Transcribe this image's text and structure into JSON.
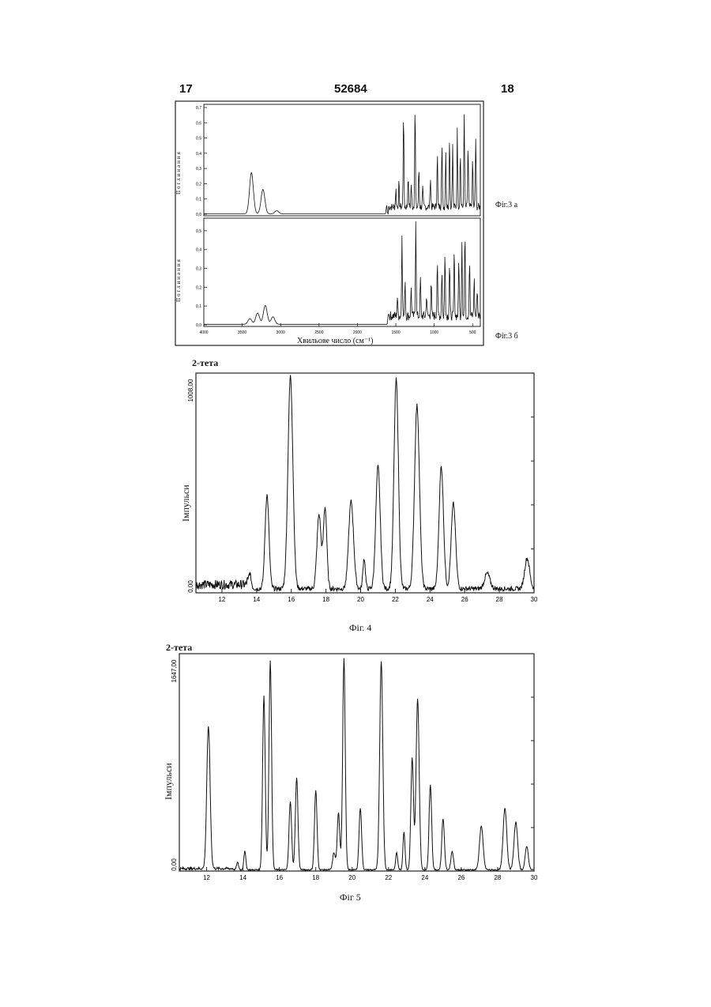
{
  "header": {
    "left_page": "17",
    "center_number": "52684",
    "right_page": "18"
  },
  "fig3": {
    "xlabel": "Хвильове число",
    "xunit": "(см⁻¹)",
    "caption_top": "Фіг.3 а",
    "caption_bottom": "Фіг.3 б",
    "ylabel_top": "Поглинання",
    "ylabel_bottom": "Поглинання",
    "x_ticks": [
      "4000",
      "3500",
      "3000",
      "2500",
      "2000",
      "1500",
      "1000",
      "500"
    ],
    "y_ticks_top": [
      "0,0",
      "0,1",
      "0,2",
      "0,3",
      "0,4",
      "0,5",
      "0,6",
      "0,7"
    ],
    "y_ticks_bottom": [
      "0,0",
      "0,1",
      "0,2",
      "0,3",
      "0,4",
      "0,5"
    ]
  },
  "fig4": {
    "top_label": "2-тета",
    "ylabel": "Імпульси",
    "ymax_label": "1008,00",
    "ymin_label": "0,00",
    "x_ticks": [
      "12",
      "14",
      "16",
      "18",
      "20",
      "22",
      "24",
      "26",
      "28",
      "30"
    ],
    "caption": "Фіг. 4"
  },
  "fig5": {
    "top_label": "2-тета",
    "ylabel": "Імпульси",
    "ymax_label": "1647,00",
    "ymin_label": "0,00",
    "x_ticks": [
      "12",
      "14",
      "16",
      "18",
      "20",
      "22",
      "24",
      "26",
      "28",
      "30"
    ],
    "caption": "Фіг 5"
  },
  "chart_data": [
    {
      "type": "line",
      "name_ref": "fig3a",
      "xlabel": "Хвильове число (см⁻¹)",
      "xlim": [
        4000,
        400
      ],
      "ylim": [
        0,
        0.7
      ],
      "peaks": [
        {
          "x": 3380,
          "y": 0.27
        },
        {
          "x": 3230,
          "y": 0.16
        },
        {
          "x": 3050,
          "y": 0.02
        },
        {
          "x": 1620,
          "y": 0.06
        },
        {
          "x": 1500,
          "y": 0.12
        },
        {
          "x": 1460,
          "y": 0.16
        },
        {
          "x": 1400,
          "y": 0.62
        },
        {
          "x": 1340,
          "y": 0.2
        },
        {
          "x": 1300,
          "y": 0.15
        },
        {
          "x": 1250,
          "y": 0.66
        },
        {
          "x": 1200,
          "y": 0.25
        },
        {
          "x": 1150,
          "y": 0.12
        },
        {
          "x": 1050,
          "y": 0.2
        },
        {
          "x": 960,
          "y": 0.35
        },
        {
          "x": 900,
          "y": 0.42
        },
        {
          "x": 850,
          "y": 0.38
        },
        {
          "x": 800,
          "y": 0.45
        },
        {
          "x": 760,
          "y": 0.4
        },
        {
          "x": 700,
          "y": 0.5
        },
        {
          "x": 660,
          "y": 0.35
        },
        {
          "x": 610,
          "y": 0.6
        },
        {
          "x": 560,
          "y": 0.4
        },
        {
          "x": 500,
          "y": 0.3
        },
        {
          "x": 460,
          "y": 0.45
        }
      ]
    },
    {
      "type": "line",
      "name_ref": "fig3b",
      "xlabel": "Хвильове число (см⁻¹)",
      "xlim": [
        4000,
        400
      ],
      "ylim": [
        0,
        0.55
      ],
      "peaks": [
        {
          "x": 3400,
          "y": 0.03
        },
        {
          "x": 3300,
          "y": 0.06
        },
        {
          "x": 3200,
          "y": 0.1
        },
        {
          "x": 3100,
          "y": 0.04
        },
        {
          "x": 1600,
          "y": 0.05
        },
        {
          "x": 1480,
          "y": 0.1
        },
        {
          "x": 1420,
          "y": 0.45
        },
        {
          "x": 1380,
          "y": 0.2
        },
        {
          "x": 1300,
          "y": 0.15
        },
        {
          "x": 1240,
          "y": 0.55
        },
        {
          "x": 1180,
          "y": 0.2
        },
        {
          "x": 1100,
          "y": 0.12
        },
        {
          "x": 1040,
          "y": 0.18
        },
        {
          "x": 960,
          "y": 0.3
        },
        {
          "x": 900,
          "y": 0.25
        },
        {
          "x": 860,
          "y": 0.34
        },
        {
          "x": 800,
          "y": 0.28
        },
        {
          "x": 740,
          "y": 0.35
        },
        {
          "x": 680,
          "y": 0.3
        },
        {
          "x": 640,
          "y": 0.4
        },
        {
          "x": 600,
          "y": 0.45
        },
        {
          "x": 540,
          "y": 0.3
        },
        {
          "x": 480,
          "y": 0.2
        },
        {
          "x": 440,
          "y": 0.15
        }
      ]
    },
    {
      "type": "line",
      "name_ref": "fig4",
      "xlabel": "",
      "ylabel": "Імпульси",
      "xlim": [
        10.5,
        30
      ],
      "ylim": [
        0,
        1008
      ],
      "baseline": 30,
      "peaks": [
        {
          "x": 13.6,
          "y": 70,
          "w": 0.12
        },
        {
          "x": 14.6,
          "y": 430,
          "w": 0.16
        },
        {
          "x": 15.95,
          "y": 975,
          "w": 0.2
        },
        {
          "x": 17.6,
          "y": 340,
          "w": 0.17
        },
        {
          "x": 17.95,
          "y": 370,
          "w": 0.14
        },
        {
          "x": 19.45,
          "y": 400,
          "w": 0.2
        },
        {
          "x": 20.2,
          "y": 140,
          "w": 0.1
        },
        {
          "x": 21.0,
          "y": 560,
          "w": 0.18
        },
        {
          "x": 22.05,
          "y": 960,
          "w": 0.18
        },
        {
          "x": 23.25,
          "y": 840,
          "w": 0.2
        },
        {
          "x": 24.65,
          "y": 560,
          "w": 0.18
        },
        {
          "x": 25.35,
          "y": 390,
          "w": 0.18
        },
        {
          "x": 27.3,
          "y": 70,
          "w": 0.22
        },
        {
          "x": 29.6,
          "y": 140,
          "w": 0.2
        }
      ]
    },
    {
      "type": "line",
      "name_ref": "fig5",
      "xlabel": "",
      "ylabel": "Імпульси",
      "xlim": [
        10.5,
        30
      ],
      "ylim": [
        0,
        1647
      ],
      "baseline": 15,
      "peaks": [
        {
          "x": 12.1,
          "y": 1080,
          "w": 0.13
        },
        {
          "x": 13.7,
          "y": 55,
          "w": 0.08
        },
        {
          "x": 14.1,
          "y": 140,
          "w": 0.08
        },
        {
          "x": 15.15,
          "y": 1320,
          "w": 0.1
        },
        {
          "x": 15.5,
          "y": 1590,
          "w": 0.1
        },
        {
          "x": 16.6,
          "y": 520,
          "w": 0.1
        },
        {
          "x": 16.95,
          "y": 700,
          "w": 0.1
        },
        {
          "x": 18.0,
          "y": 600,
          "w": 0.1
        },
        {
          "x": 19.0,
          "y": 130,
          "w": 0.1
        },
        {
          "x": 19.25,
          "y": 430,
          "w": 0.1
        },
        {
          "x": 19.55,
          "y": 1600,
          "w": 0.1
        },
        {
          "x": 20.45,
          "y": 470,
          "w": 0.1
        },
        {
          "x": 21.6,
          "y": 1580,
          "w": 0.12
        },
        {
          "x": 22.45,
          "y": 130,
          "w": 0.08
        },
        {
          "x": 22.85,
          "y": 290,
          "w": 0.08
        },
        {
          "x": 23.3,
          "y": 850,
          "w": 0.1
        },
        {
          "x": 23.6,
          "y": 1300,
          "w": 0.12
        },
        {
          "x": 24.3,
          "y": 650,
          "w": 0.1
        },
        {
          "x": 25.0,
          "y": 390,
          "w": 0.1
        },
        {
          "x": 25.5,
          "y": 140,
          "w": 0.1
        },
        {
          "x": 27.1,
          "y": 330,
          "w": 0.14
        },
        {
          "x": 28.4,
          "y": 470,
          "w": 0.14
        },
        {
          "x": 29.0,
          "y": 360,
          "w": 0.14
        },
        {
          "x": 29.6,
          "y": 180,
          "w": 0.12
        }
      ]
    }
  ]
}
